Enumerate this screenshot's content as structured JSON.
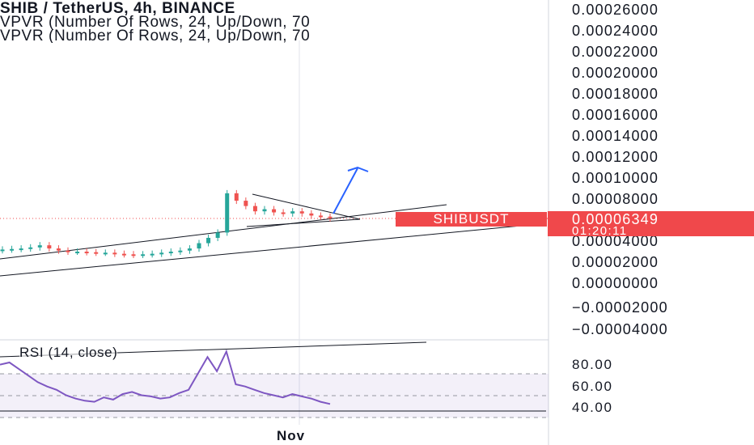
{
  "header": {
    "title": "SHIB / TetherUS, 4h, BINANCE",
    "indicator_1": "VPVR (Number Of Rows, 24, Up/Down, 70",
    "indicator_2": "VPVR (Number Of Rows, 24, Up/Down, 70"
  },
  "price_axis": {
    "labels": [
      "0.00026000",
      "0.00024000",
      "0.00022000",
      "0.00020000",
      "0.00018000",
      "0.00016000",
      "0.00014000",
      "0.00012000",
      "0.00010000",
      "0.00008000",
      "0.00004000",
      "0.00002000",
      "0.00000000",
      "−0.00002000",
      "−0.00004000"
    ]
  },
  "last_price": {
    "symbol": "SHIBUSDT",
    "price": "0.00006349",
    "countdown": "01:20:11",
    "color": "#f0484b"
  },
  "rsi": {
    "title": "RSI (14, close)",
    "axis_labels": [
      "80.00",
      "60.00",
      "40.00"
    ],
    "band_color": "#7e57c2"
  },
  "time_axis": {
    "label": "Nov"
  },
  "colors": {
    "up": "#26a69a",
    "down": "#ef5350",
    "rsi_line": "#7e57c2",
    "arrow": "#2962ff"
  },
  "chart_data": [
    {
      "type": "line",
      "title": "SHIB / TetherUS, 4h, BINANCE",
      "series": [
        {
          "name": "SHIB / TetherUS",
          "values": [
            3.4e-05,
            3.45e-05,
            3.5e-05,
            3.6e-05,
            3.8e-05,
            3.5e-05,
            3.3e-05,
            3.2e-05,
            3.2e-05,
            3.15e-05,
            3.1e-05,
            3.1e-05,
            3e-05,
            2.95e-05,
            2.9e-05,
            2.95e-05,
            3e-05,
            3.1e-05,
            3.2e-05,
            3.3e-05,
            3.5e-05,
            4e-05,
            4.5e-05,
            5e-05,
            8.7e-05,
            8e-05,
            7.5e-05,
            7e-05,
            7.2e-05,
            6.9e-05,
            6.8e-05,
            7e-05,
            6.8e-05,
            6.6e-05,
            6.5e-05,
            6.35e-05
          ]
        }
      ],
      "ylim": [
        -4e-05,
        0.00026
      ]
    },
    {
      "type": "line",
      "title": "RSI (14, close)",
      "series": [
        {
          "name": "RSI (14, close)",
          "values": [
            78,
            80,
            74,
            68,
            62,
            58,
            55,
            50,
            47,
            45,
            44,
            48,
            46,
            51,
            53,
            50,
            49,
            47,
            48,
            52,
            55,
            70,
            85,
            72,
            90,
            60,
            58,
            55,
            52,
            50,
            48,
            51,
            49,
            47,
            44,
            42
          ]
        }
      ],
      "ylim": [
        30,
        95
      ]
    }
  ]
}
